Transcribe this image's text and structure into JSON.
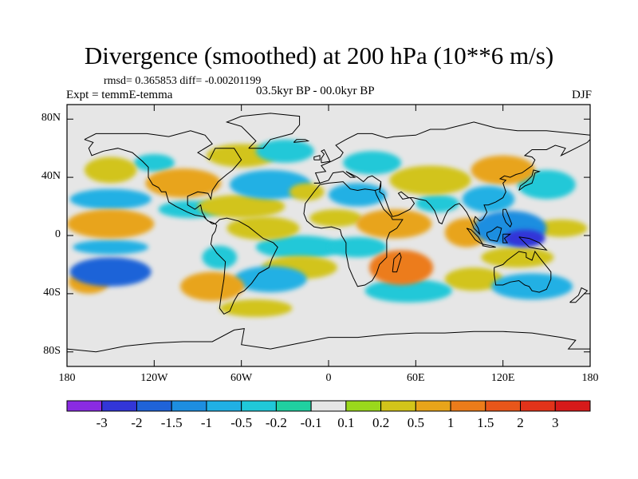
{
  "title": "Divergence (smoothed) at 200 hPa (10**6 m/s)",
  "stats_line": "rmsd= 0.365853 diff= -0.00201199",
  "experiment": "Expt = temmE-temma",
  "period": "03.5kyr BP - 00.0kyr BP",
  "season": "DJF",
  "chart_data": {
    "type": "heatmap",
    "title": "Divergence (smoothed) at 200 hPa (10**6 m/s)",
    "variable": "Divergence (smoothed) at 200 hPa",
    "units": "10**6 m/s",
    "projection": "cylindrical equidistant",
    "xlim": [
      -180,
      180
    ],
    "ylim": [
      -90,
      90
    ],
    "x_ticks": [
      {
        "value": -180,
        "label": "180"
      },
      {
        "value": -120,
        "label": "120W"
      },
      {
        "value": -60,
        "label": "60W"
      },
      {
        "value": 0,
        "label": "0"
      },
      {
        "value": 60,
        "label": "60E"
      },
      {
        "value": 120,
        "label": "120E"
      },
      {
        "value": 180,
        "label": "180"
      }
    ],
    "y_ticks": [
      {
        "value": 80,
        "label": "80N"
      },
      {
        "value": 40,
        "label": "40N"
      },
      {
        "value": 0,
        "label": "0"
      },
      {
        "value": -40,
        "label": "40S"
      },
      {
        "value": -80,
        "label": "80S"
      }
    ],
    "colorbar": {
      "levels": [
        "-3",
        "-2",
        "-1.5",
        "-1",
        "-0.5",
        "-0.2",
        "-0.1",
        "0.1",
        "0.2",
        "0.5",
        "1",
        "1.5",
        "2",
        "3"
      ],
      "colors": [
        "#8a2be2",
        "#3236d8",
        "#1f63d8",
        "#1d8ee0",
        "#20b0e4",
        "#20c8d8",
        "#20d0a0",
        "#e6e6e6",
        "#9ad81c",
        "#d2c41a",
        "#e8a41a",
        "#ec7c1a",
        "#e8561a",
        "#e2331a",
        "#d61a1a"
      ]
    },
    "features": [
      {
        "lon": -150,
        "lat": -25,
        "rx": 28,
        "ry": 10,
        "value": -1.8
      },
      {
        "lon": -150,
        "lat": -8,
        "rx": 26,
        "ry": 5,
        "value": -0.5
      },
      {
        "lon": -165,
        "lat": -32,
        "rx": 14,
        "ry": 8,
        "value": 0.8
      },
      {
        "lon": -150,
        "lat": 8,
        "rx": 30,
        "ry": 10,
        "value": 0.6
      },
      {
        "lon": -150,
        "lat": 25,
        "rx": 28,
        "ry": 7,
        "value": -0.5
      },
      {
        "lon": -150,
        "lat": 45,
        "rx": 18,
        "ry": 9,
        "value": 0.4
      },
      {
        "lon": -100,
        "lat": 36,
        "rx": 26,
        "ry": 10,
        "value": 0.7
      },
      {
        "lon": -95,
        "lat": 18,
        "rx": 22,
        "ry": 6,
        "value": -0.4
      },
      {
        "lon": -120,
        "lat": 50,
        "rx": 14,
        "ry": 6,
        "value": -0.3
      },
      {
        "lon": -60,
        "lat": 20,
        "rx": 30,
        "ry": 8,
        "value": 0.5
      },
      {
        "lon": -45,
        "lat": 5,
        "rx": 25,
        "ry": 8,
        "value": 0.4
      },
      {
        "lon": -60,
        "lat": 55,
        "rx": 24,
        "ry": 8,
        "value": 0.3
      },
      {
        "lon": -30,
        "lat": 58,
        "rx": 20,
        "ry": 8,
        "value": -0.3
      },
      {
        "lon": -40,
        "lat": 35,
        "rx": 28,
        "ry": 10,
        "value": -0.5
      },
      {
        "lon": -15,
        "lat": 30,
        "rx": 12,
        "ry": 6,
        "value": 0.5
      },
      {
        "lon": -20,
        "lat": -8,
        "rx": 30,
        "ry": 8,
        "value": -0.3
      },
      {
        "lon": -20,
        "lat": -22,
        "rx": 26,
        "ry": 8,
        "value": 0.5
      },
      {
        "lon": -40,
        "lat": -30,
        "rx": 25,
        "ry": 9,
        "value": -0.6
      },
      {
        "lon": -80,
        "lat": -35,
        "rx": 22,
        "ry": 10,
        "value": 0.6
      },
      {
        "lon": -75,
        "lat": -15,
        "rx": 12,
        "ry": 8,
        "value": -0.4
      },
      {
        "lon": -50,
        "lat": -50,
        "rx": 25,
        "ry": 6,
        "value": 0.3
      },
      {
        "lon": 20,
        "lat": 28,
        "rx": 20,
        "ry": 8,
        "value": -0.5
      },
      {
        "lon": 5,
        "lat": 12,
        "rx": 18,
        "ry": 6,
        "value": 0.3
      },
      {
        "lon": 45,
        "lat": 8,
        "rx": 26,
        "ry": 10,
        "value": 0.6
      },
      {
        "lon": 30,
        "lat": 50,
        "rx": 20,
        "ry": 8,
        "value": -0.3
      },
      {
        "lon": 50,
        "lat": -22,
        "rx": 22,
        "ry": 12,
        "value": 1.2
      },
      {
        "lon": 20,
        "lat": -8,
        "rx": 20,
        "ry": 7,
        "value": -0.4
      },
      {
        "lon": 55,
        "lat": -38,
        "rx": 30,
        "ry": 8,
        "value": -0.4
      },
      {
        "lon": 70,
        "lat": 38,
        "rx": 28,
        "ry": 10,
        "value": 0.5
      },
      {
        "lon": 75,
        "lat": 22,
        "rx": 15,
        "ry": 6,
        "value": -0.3
      },
      {
        "lon": 95,
        "lat": 2,
        "rx": 15,
        "ry": 10,
        "value": 0.9
      },
      {
        "lon": 110,
        "lat": 25,
        "rx": 18,
        "ry": 9,
        "value": -0.8
      },
      {
        "lon": 125,
        "lat": 5,
        "rx": 25,
        "ry": 12,
        "value": -1.2
      },
      {
        "lon": 135,
        "lat": -2,
        "rx": 14,
        "ry": 6,
        "value": -2.0
      },
      {
        "lon": 120,
        "lat": 45,
        "rx": 22,
        "ry": 10,
        "value": 0.6
      },
      {
        "lon": 150,
        "lat": 35,
        "rx": 20,
        "ry": 10,
        "value": -0.4
      },
      {
        "lon": 160,
        "lat": 5,
        "rx": 18,
        "ry": 6,
        "value": 0.4
      },
      {
        "lon": 130,
        "lat": -15,
        "rx": 25,
        "ry": 7,
        "value": 0.5
      },
      {
        "lon": 140,
        "lat": -35,
        "rx": 28,
        "ry": 9,
        "value": -0.5
      },
      {
        "lon": 100,
        "lat": -30,
        "rx": 20,
        "ry": 8,
        "value": 0.3
      }
    ]
  }
}
